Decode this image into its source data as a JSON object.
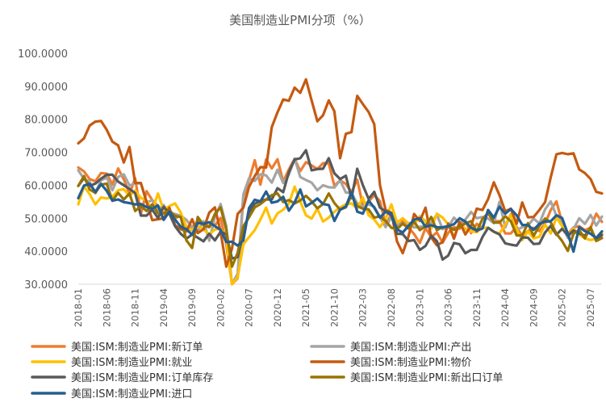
{
  "chart_data": {
    "type": "line",
    "title": "美国制造业PMI分项（%）",
    "xlabel": "",
    "ylabel": "",
    "ylim": [
      30,
      100
    ],
    "yticks": [
      "30.0000",
      "40.0000",
      "50.0000",
      "60.0000",
      "70.0000",
      "80.0000",
      "90.0000",
      "100.0000"
    ],
    "ytick_values": [
      30,
      40,
      50,
      60,
      70,
      80,
      90,
      100
    ],
    "x_start": "2018-01",
    "x_end": "2025-09",
    "num_points": 93,
    "xticks": [
      "2018-01",
      "2018-06",
      "2018-11",
      "2019-04",
      "2019-09",
      "2020-02",
      "2020-07",
      "2020-12",
      "2021-05",
      "2021-10",
      "2022-03",
      "2022-08",
      "2023-01",
      "2023-06",
      "2023-11",
      "2024-04",
      "2024-09",
      "2025-02",
      "2025-07"
    ],
    "xtick_index": [
      0,
      5,
      10,
      15,
      20,
      25,
      30,
      35,
      40,
      45,
      50,
      55,
      60,
      65,
      70,
      75,
      80,
      85,
      90
    ],
    "legend_position": "bottom",
    "series": [
      {
        "name": "美国:ISM:制造业PMI:新订单",
        "color": "#ED7D31",
        "values": [
          65.4,
          64.2,
          61.9,
          61.2,
          63.7,
          63.5,
          60.2,
          65.1,
          61.8,
          57.4,
          62.1,
          51.3,
          58.2,
          55.5,
          53.7,
          51.7,
          52.7,
          50.0,
          50.8,
          47.2,
          47.3,
          49.1,
          48.3,
          47.6,
          47.8,
          50.1,
          42.2,
          27.1,
          31.8,
          56.4,
          61.5,
          67.6,
          60.2,
          67.9,
          65.1,
          67.9,
          61.1,
          64.8,
          68.0,
          64.3,
          67.0,
          66.0,
          64.9,
          66.7,
          66.7,
          59.8,
          61.5,
          60.4,
          57.9,
          61.7,
          53.8,
          55.1,
          57.0,
          55.2,
          48.0,
          51.3,
          47.1,
          49.2,
          47.2,
          45.2,
          42.5,
          47.0,
          44.3,
          45.7,
          42.6,
          45.6,
          47.3,
          46.8,
          49.2,
          45.5,
          48.3,
          47.0,
          52.5,
          49.2,
          49.1,
          45.4,
          45.4,
          47.4,
          44.6,
          46.1,
          47.1,
          46.1,
          48.4,
          52.5,
          55.1,
          48.6,
          45.2,
          47.2,
          47.6,
          46.4,
          47.1,
          51.4,
          48.9
        ]
      },
      {
        "name": "美国:ISM:制造业PMI:产出",
        "color": "#A5A5A5",
        "values": [
          64.5,
          62.0,
          61.0,
          57.6,
          61.5,
          62.3,
          58.5,
          62.5,
          63.3,
          59.9,
          60.6,
          60.6,
          54.8,
          55.5,
          52.3,
          54.0,
          51.3,
          51.3,
          50.8,
          49.5,
          47.3,
          46.2,
          49.1,
          43.2,
          50.3,
          54.3,
          47.7,
          27.5,
          33.2,
          57.3,
          62.1,
          61.3,
          63.3,
          63.0,
          60.8,
          64.7,
          60.7,
          63.2,
          68.1,
          62.5,
          61.6,
          60.8,
          58.5,
          60.0,
          59.4,
          59.3,
          61.5,
          57.8,
          57.6,
          54.5,
          53.6,
          54.2,
          53.5,
          50.4,
          47.3,
          50.4,
          48.4,
          48.2,
          48.6,
          47.2,
          47.4,
          47.5,
          48.7,
          51.1,
          46.7,
          47.3,
          50.2,
          48.5,
          49.6,
          51.9,
          50.0,
          50.4,
          49.9,
          48.5,
          55.0,
          47.2,
          51.3,
          46.4,
          47.3,
          47.8,
          49.9,
          48.4,
          52.7,
          55.1,
          50.7,
          48.3,
          44.0,
          46.7,
          50.0,
          48.3,
          51.0,
          47.8,
          50.5
        ]
      },
      {
        "name": "美国:ISM:制造业PMI:就业",
        "color": "#FFC000",
        "values": [
          54.2,
          59.7,
          57.3,
          54.2,
          56.3,
          56.0,
          56.5,
          58.5,
          58.8,
          56.8,
          58.4,
          56.2,
          55.3,
          52.4,
          57.5,
          52.4,
          53.7,
          54.5,
          51.7,
          47.4,
          46.3,
          47.7,
          46.6,
          45.1,
          46.6,
          46.9,
          43.8,
          27.5,
          32.1,
          42.1,
          44.3,
          46.4,
          49.6,
          53.2,
          48.4,
          51.5,
          52.6,
          54.4,
          59.6,
          55.1,
          50.9,
          49.9,
          52.9,
          49.0,
          50.2,
          52.0,
          53.3,
          54.2,
          54.5,
          52.9,
          56.3,
          50.9,
          49.6,
          47.3,
          49.9,
          54.2,
          48.7,
          50.0,
          48.4,
          48.1,
          50.6,
          49.1,
          46.9,
          51.4,
          50.2,
          48.1,
          44.4,
          48.5,
          46.8,
          46.0,
          45.8,
          47.1,
          47.1,
          45.9,
          45.4,
          48.0,
          51.1,
          46.6,
          43.4,
          46.0,
          43.9,
          44.4,
          48.1,
          45.4,
          50.3,
          47.6,
          44.7,
          46.8,
          45.0,
          43.9,
          43.4,
          43.8,
          45.3
        ]
      },
      {
        "name": "美国:ISM:制造业PMI:物价",
        "color": "#C55A11",
        "values": [
          72.7,
          74.2,
          78.1,
          79.3,
          79.5,
          76.8,
          73.2,
          72.1,
          66.9,
          71.6,
          60.7,
          60.7,
          54.9,
          49.4,
          49.7,
          50.0,
          53.2,
          47.9,
          46.7,
          46.0,
          49.7,
          45.5,
          46.7,
          51.7,
          53.3,
          45.9,
          35.3,
          40.8,
          51.3,
          53.2,
          59.5,
          62.8,
          65.5,
          65.4,
          77.6,
          82.1,
          86.0,
          85.6,
          89.6,
          88.0,
          92.1,
          85.7,
          79.4,
          81.2,
          85.7,
          82.4,
          68.2,
          75.6,
          76.1,
          87.1,
          84.6,
          82.2,
          78.5,
          60.0,
          52.5,
          51.7,
          43.0,
          39.4,
          44.5,
          51.3,
          49.2,
          53.2,
          44.2,
          41.8,
          42.8,
          48.4,
          43.8,
          48.9,
          45.1,
          47.7,
          52.9,
          52.5,
          55.8,
          60.9,
          57.0,
          52.1,
          52.9,
          48.3,
          54.8,
          50.3,
          50.4,
          52.5,
          54.9,
          62.4,
          69.4,
          69.8,
          69.4,
          69.7,
          64.8,
          63.7,
          61.9,
          58.0,
          57.5
        ]
      },
      {
        "name": "美国:ISM:制造业PMI:订单库存",
        "color": "#595959",
        "values": [
          59.8,
          62.2,
          59.8,
          60.5,
          62.0,
          63.2,
          63.2,
          61.1,
          60.0,
          58.9,
          57.6,
          50.8,
          50.8,
          52.6,
          50.1,
          53.5,
          51.4,
          47.6,
          45.3,
          43.8,
          45.1,
          44.1,
          43.0,
          45.3,
          43.3,
          45.9,
          45.1,
          37.8,
          38.2,
          45.3,
          51.8,
          54.4,
          55.2,
          55.7,
          55.7,
          59.1,
          57.9,
          64.0,
          67.8,
          68.2,
          70.6,
          64.5,
          64.9,
          65.0,
          68.2,
          63.6,
          61.9,
          62.9,
          56.1,
          65.0,
          60.0,
          55.9,
          58.0,
          53.2,
          52.1,
          50.8,
          45.3,
          45.2,
          43.1,
          43.4,
          40.4,
          41.6,
          44.7,
          43.1,
          37.5,
          38.7,
          42.5,
          42.1,
          39.4,
          40.4,
          40.4,
          44.3,
          47.1,
          45.9,
          45.1,
          42.4,
          42.0,
          41.7,
          44.2,
          44.1,
          42.2,
          42.3,
          45.7,
          47.7,
          45.0,
          46.8,
          44.7,
          46.3,
          45.4,
          44.7,
          46.9,
          43.4,
          44.9
        ]
      },
      {
        "name": "美国:ISM:制造业PMI:新出口订单",
        "color": "#997300",
        "values": [
          59.8,
          62.8,
          58.7,
          57.7,
          60.2,
          60.5,
          55.3,
          57.7,
          55.7,
          57.5,
          52.2,
          53.7,
          52.2,
          54.2,
          51.5,
          51.5,
          52.4,
          50.7,
          50.4,
          43.3,
          41.0,
          50.4,
          47.9,
          47.3,
          51.3,
          53.3,
          46.6,
          35.3,
          39.5,
          47.6,
          50.3,
          53.3,
          54.3,
          55.7,
          57.0,
          57.5,
          54.9,
          55.5,
          54.5,
          55.4,
          56.8,
          55.1,
          53.0,
          54.3,
          57.5,
          54.6,
          52.6,
          53.3,
          57.0,
          53.7,
          52.9,
          52.7,
          50.2,
          50.6,
          49.2,
          47.1,
          46.7,
          48.4,
          46.9,
          49.0,
          46.4,
          47.6,
          50.4,
          46.4,
          47.3,
          47.6,
          46.5,
          47.4,
          48.4,
          49.1,
          46.0,
          49.8,
          51.6,
          48.7,
          48.7,
          50.6,
          49.1,
          44.8,
          44.8,
          48.5,
          44.6,
          47.7,
          49.9,
          48.8,
          45.3,
          43.1,
          40.1,
          45.3,
          46.4,
          43.9,
          47.3,
          43.1,
          44.0
        ]
      },
      {
        "name": "美国:ISM:制造业PMI:进口",
        "color": "#255E91",
        "values": [
          56.1,
          59.9,
          60.4,
          58.0,
          60.4,
          58.3,
          55.3,
          55.7,
          54.9,
          54.6,
          54.2,
          54.3,
          53.4,
          52.9,
          53.9,
          49.5,
          52.0,
          49.6,
          47.4,
          46.7,
          45.0,
          48.6,
          48.3,
          48.8,
          47.6,
          46.5,
          42.8,
          42.9,
          41.7,
          43.3,
          53.1,
          55.6,
          55.1,
          58.1,
          54.7,
          55.1,
          56.5,
          52.3,
          54.8,
          58.7,
          53.6,
          54.7,
          56.0,
          54.3,
          54.0,
          49.2,
          52.6,
          53.6,
          57.9,
          52.0,
          51.4,
          55.4,
          53.2,
          50.2,
          52.0,
          51.4,
          46.6,
          45.7,
          47.7,
          49.6,
          50.0,
          47.4,
          47.9,
          47.3,
          47.2,
          47.6,
          48.2,
          50.0,
          49.0,
          47.1,
          46.3,
          46.9,
          52.5,
          50.2,
          53.5,
          51.4,
          52.8,
          50.9,
          48.0,
          47.9,
          46.5,
          48.3,
          49.0,
          49.1,
          50.9,
          50.1,
          45.3,
          39.9,
          47.3,
          46.1,
          45.3,
          44.0,
          46.0
        ]
      }
    ]
  }
}
